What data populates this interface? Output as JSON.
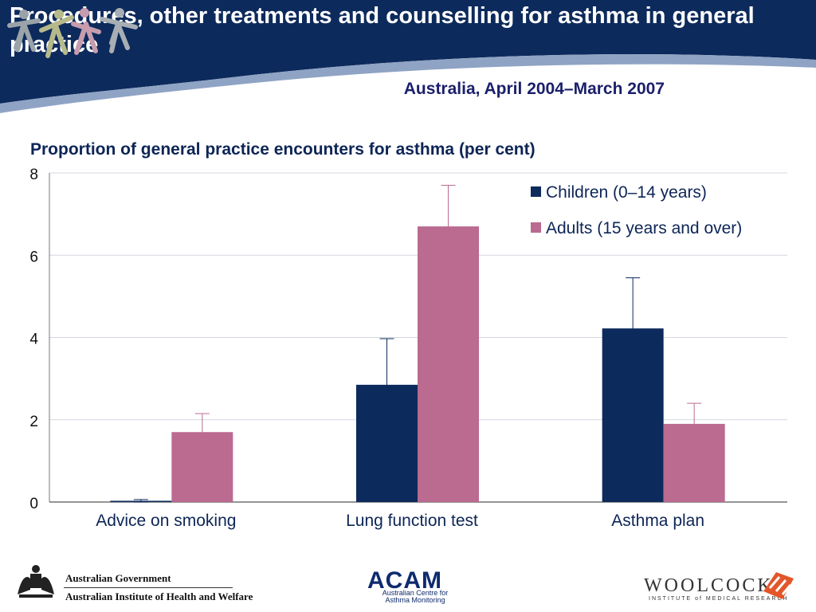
{
  "header": {
    "title": "Procedures, other treatments and counselling for asthma in general practice",
    "subtitle": "Australia, April 2004–March 2007"
  },
  "colors": {
    "navy": "#0d2a5c",
    "children": "#0d2a5c",
    "adults": "#bb6a90",
    "swoosh": "#8fa3c4"
  },
  "footer": {
    "gov_line1": "Australian Government",
    "gov_line2": "Australian Institute of Health and Welfare",
    "acam": "ACAM",
    "acam_sub1": "Australian Centre for",
    "acam_sub2": "Asthma Monitoring",
    "woolcock": "WOOLCOCK",
    "woolcock_sub": "INSTITUTE of MEDICAL RESEARCH"
  },
  "chart_data": {
    "type": "bar",
    "title": "Proportion of general practice encounters for asthma (per cent)",
    "categories": [
      "Advice on smoking",
      "Lung function test",
      "Asthma plan"
    ],
    "series": [
      {
        "name": "Children (0–14 years)",
        "color": "#0d2a5c",
        "values": [
          0.03,
          2.85,
          4.22
        ],
        "error_low": [
          0.0,
          1.72,
          3.0
        ],
        "error_high": [
          0.06,
          3.97,
          5.45
        ]
      },
      {
        "name": "Adults (15 years and over)",
        "color": "#bb6a90",
        "values": [
          1.7,
          6.7,
          1.9
        ],
        "error_low": [
          1.25,
          5.72,
          1.4
        ],
        "error_high": [
          2.15,
          7.7,
          2.4
        ]
      }
    ],
    "yticks": [
      0,
      2,
      4,
      6,
      8
    ],
    "ylim": [
      0,
      8
    ],
    "grid": true,
    "legend": "top-right"
  }
}
